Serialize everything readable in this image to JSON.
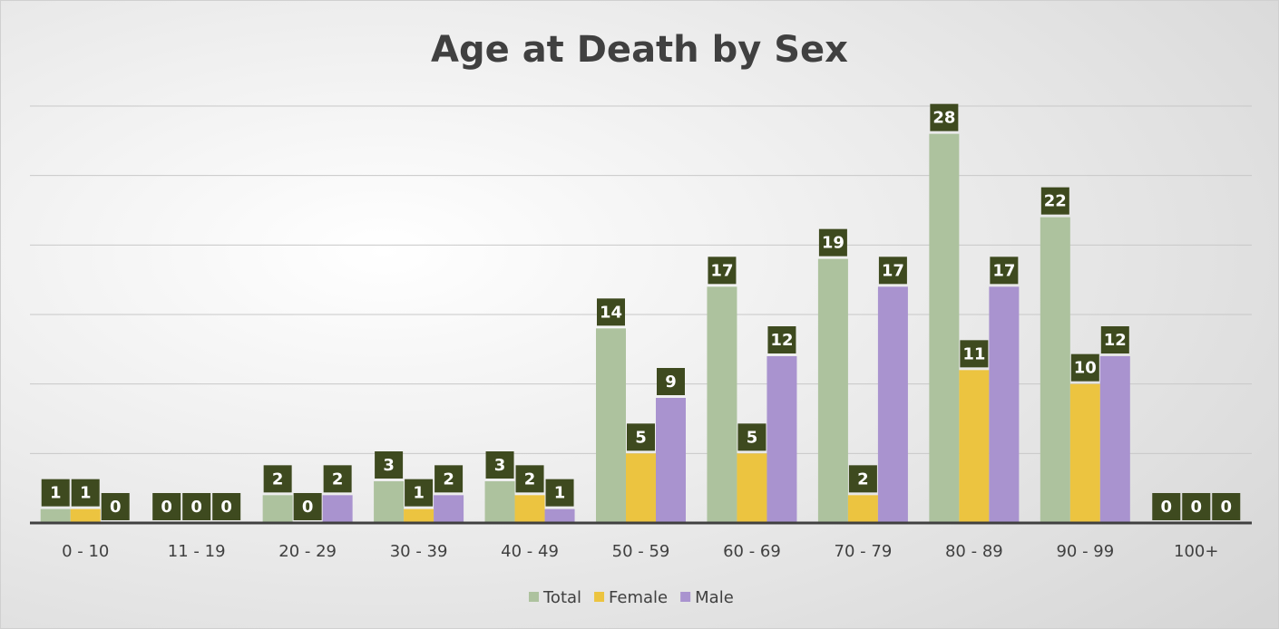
{
  "chart_data": {
    "type": "bar",
    "title": "Age at Death by Sex",
    "categories": [
      "0 - 10",
      "11 - 19",
      "20 - 29",
      "30 - 39",
      "40 - 49",
      "50 - 59",
      "60 - 69",
      "70 - 79",
      "80 - 89",
      "90 - 99",
      "100+"
    ],
    "series": [
      {
        "name": "Total",
        "color": "#adc29e",
        "values": [
          1,
          0,
          2,
          3,
          3,
          14,
          17,
          19,
          28,
          22,
          0
        ]
      },
      {
        "name": "Female",
        "color": "#ecc440",
        "values": [
          1,
          0,
          0,
          1,
          2,
          5,
          5,
          2,
          11,
          10,
          0
        ]
      },
      {
        "name": "Male",
        "color": "#a993cf",
        "values": [
          0,
          0,
          2,
          2,
          1,
          9,
          12,
          17,
          17,
          12,
          0
        ]
      }
    ],
    "ylim": [
      0,
      30
    ],
    "yticks": [
      0,
      5,
      10,
      15,
      20,
      25,
      30
    ],
    "grid": true,
    "legend": "bottom"
  }
}
